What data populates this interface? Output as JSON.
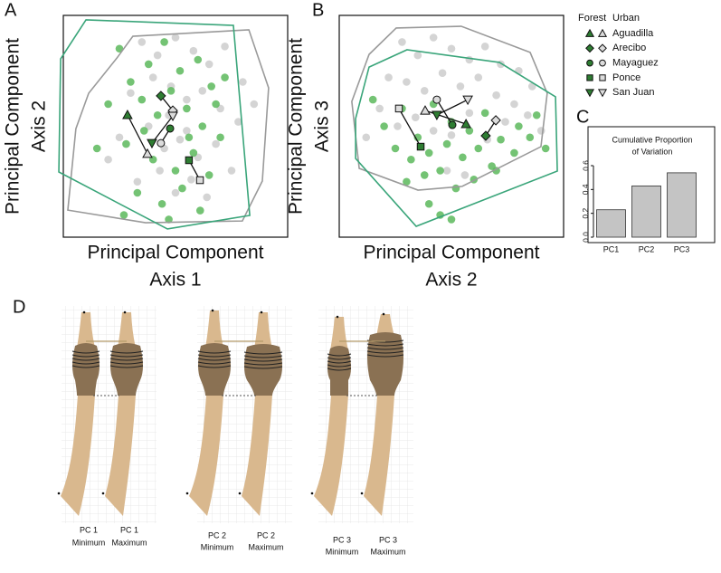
{
  "chart_data": [
    {
      "type": "scatter",
      "panel_label": "A",
      "xlabel": [
        "Principal Component",
        "Axis 1"
      ],
      "ylabel": [
        "Principal Component",
        "Axis 2"
      ],
      "xlim": [
        0,
        100
      ],
      "ylim": [
        0,
        100
      ],
      "hulls": [
        {
          "color": "#9a9a9a",
          "x": [
            23.9,
            31.0,
            82.7,
            91.5,
            88.7,
            79.8,
            36.7,
            2.0,
            5.6,
            11.3
          ],
          "y": [
            80.8,
            90.6,
            93.5,
            67.3,
            25.3,
            7.3,
            6.5,
            12.2,
            48.9,
            64.9
          ]
        },
        {
          "color": "#3aa57a",
          "x": [
            10.1,
            75.8,
            83.1,
            46.4,
            -2.0,
            -1.2
          ],
          "y": [
            98.0,
            95.5,
            9.8,
            3.7,
            29.4,
            80.4
          ]
        }
      ],
      "points": [
        {
          "color": "#cfcfcf",
          "x": [
            35,
            42,
            50,
            58,
            65,
            72,
            80,
            85,
            30,
            40,
            48,
            55,
            62,
            70,
            78,
            25,
            38,
            45,
            52,
            60,
            68,
            75,
            33,
            43,
            50,
            57,
            64,
            20,
            47,
            55
          ],
          "y": [
            88,
            82,
            90,
            84,
            78,
            86,
            70,
            60,
            65,
            72,
            68,
            62,
            66,
            58,
            52,
            45,
            50,
            40,
            44,
            36,
            42,
            30,
            25,
            30,
            20,
            26,
            18,
            35,
            55,
            48
          ]
        },
        {
          "color": "#5cb85c",
          "x": [
            25,
            30,
            38,
            45,
            52,
            60,
            66,
            72,
            20,
            35,
            42,
            48,
            55,
            62,
            70,
            15,
            28,
            40,
            50,
            58,
            65,
            33,
            44,
            53,
            61,
            27,
            36,
            47,
            56,
            68
          ],
          "y": [
            85,
            70,
            78,
            88,
            75,
            80,
            68,
            72,
            60,
            62,
            55,
            66,
            58,
            50,
            45,
            40,
            42,
            35,
            30,
            38,
            28,
            20,
            15,
            22,
            12,
            10,
            48,
            8,
            45,
            60
          ]
        }
      ],
      "means": {
        "forest_x": [
          28.6,
          43.5,
          47.6,
          56.0,
          39.5
        ],
        "forest_y": [
          55.1,
          63.7,
          49.0,
          34.7,
          42.4
        ],
        "urban_x": [
          37.5,
          48.8,
          43.5,
          60.9,
          48.8
        ],
        "urban_y": [
          37.6,
          57.1,
          42.4,
          25.7,
          54.7
        ]
      }
    },
    {
      "type": "scatter",
      "panel_label": "B",
      "xlabel": [
        "Principal Component",
        "Axis 2"
      ],
      "ylabel": [
        "Principal Component",
        "Axis 3"
      ],
      "xlim": [
        0,
        100
      ],
      "ylim": [
        0,
        100
      ],
      "hulls": [
        {
          "color": "#9a9a9a",
          "x": [
            25.4,
            54.4,
            85.1,
            92.7,
            89.9,
            54.8,
            35.1,
            8.9,
            5.6,
            13.3
          ],
          "y": [
            94.3,
            95.1,
            83.3,
            64.9,
            40.8,
            22.9,
            21.2,
            31.0,
            61.2,
            82.4
          ]
        },
        {
          "color": "#3aa57a",
          "x": [
            13.3,
            30.2,
            71.4,
            96.4,
            97.2,
            34.3,
            7.3,
            7.3
          ],
          "y": [
            76.7,
            84.5,
            78.8,
            63.3,
            29.8,
            4.9,
            35.5,
            53.5
          ]
        }
      ],
      "points": [
        {
          "color": "#cfcfcf",
          "x": [
            28,
            35,
            42,
            50,
            58,
            65,
            72,
            80,
            86,
            22,
            30,
            38,
            46,
            54,
            62,
            70,
            78,
            84,
            18,
            26,
            34,
            42,
            50,
            58,
            66,
            74,
            12,
            90,
            48,
            56
          ],
          "y": [
            88,
            82,
            90,
            85,
            80,
            86,
            78,
            75,
            68,
            72,
            70,
            66,
            74,
            68,
            72,
            64,
            60,
            55,
            58,
            50,
            54,
            48,
            46,
            56,
            44,
            52,
            45,
            48,
            30,
            28
          ]
        },
        {
          "color": "#5cb85c",
          "x": [
            20,
            28,
            35,
            42,
            50,
            58,
            65,
            72,
            80,
            88,
            25,
            32,
            40,
            48,
            55,
            62,
            70,
            78,
            85,
            30,
            38,
            45,
            52,
            60,
            68,
            40,
            45,
            50,
            15,
            92
          ],
          "y": [
            50,
            58,
            45,
            60,
            52,
            48,
            56,
            44,
            50,
            55,
            40,
            35,
            38,
            42,
            36,
            40,
            30,
            38,
            45,
            25,
            28,
            30,
            22,
            26,
            32,
            15,
            10,
            8,
            62,
            40
          ]
        }
      ],
      "means": {
        "forest_x": [
          56.5,
          65.3,
          50.4,
          36.3,
          43.5
        ],
        "forest_y": [
          51.0,
          45.7,
          50.6,
          40.8,
          55.1
        ],
        "urban_x": [
          38.3,
          69.8,
          43.5,
          26.6,
          57.3
        ],
        "urban_y": [
          57.1,
          52.7,
          62.0,
          58.0,
          62.0
        ]
      }
    },
    {
      "type": "bar",
      "panel_label": "C",
      "title": [
        "Cumulative Proportion",
        "of Variation"
      ],
      "categories": [
        "PC1",
        "PC2",
        "PC3"
      ],
      "values": [
        0.23,
        0.43,
        0.54
      ],
      "color": "#c4c4c4",
      "ylim": [
        0,
        0.6
      ],
      "yticks": [
        {
          "value": 0,
          "label": "0.0"
        },
        0.2,
        0.4,
        0.6
      ]
    }
  ],
  "legend": {
    "forest_label": "Forest",
    "urban_label": "Urban",
    "forest_color": "#2e7d32",
    "urban_color": "#dcdcdc",
    "groups": [
      {
        "name": "Aguadilla",
        "shape": "triangle"
      },
      {
        "name": "Arecibo",
        "shape": "diamond"
      },
      {
        "name": "Mayaguez",
        "shape": "circle"
      },
      {
        "name": "Ponce",
        "shape": "square"
      },
      {
        "name": "San Juan",
        "shape": "down-triangle"
      }
    ]
  },
  "panel_d": {
    "panel_label": "D",
    "labels": [
      [
        [
          "PC 1",
          "Minimum"
        ],
        [
          "PC 1",
          "Maximum"
        ]
      ],
      [
        [
          "PC 2",
          "Minimum"
        ],
        [
          "PC 2",
          "Maximum"
        ]
      ],
      [
        [
          "PC 3",
          "Minimum"
        ],
        [
          "PC 3",
          "Maximum"
        ]
      ]
    ]
  }
}
